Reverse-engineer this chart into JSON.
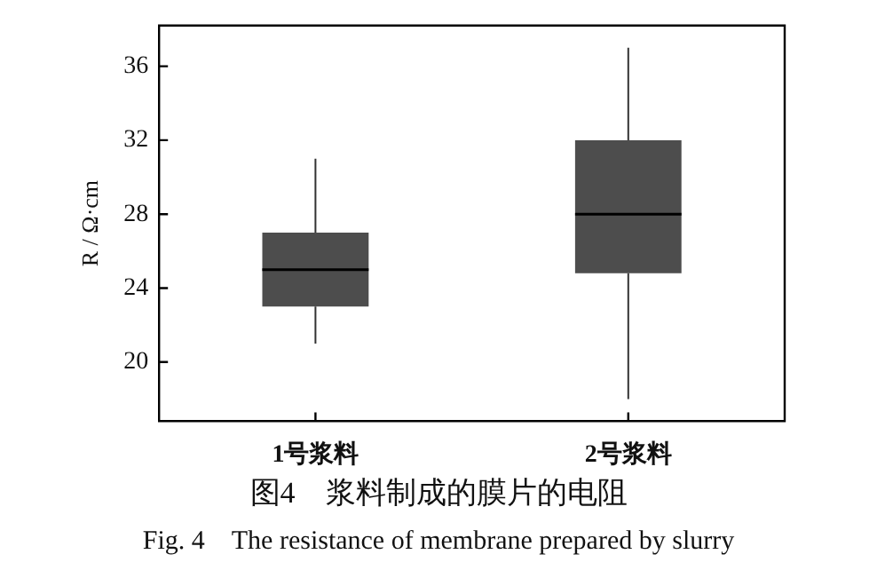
{
  "chart_data": {
    "type": "box",
    "title": "图4　浆料制成的膜片的电阻",
    "subtitle": "Fig. 4　The resistance of membrane prepared by slurry",
    "ylabel": "R / Ω·cm",
    "categories": [
      "1号浆料",
      "2号浆料"
    ],
    "color": "#4d4d4d",
    "boxes": [
      {
        "low": 21,
        "q1": 23,
        "median": 25,
        "q3": 27,
        "high": 31
      },
      {
        "low": 18,
        "q1": 24.8,
        "median": 28,
        "q3": 32,
        "high": 37
      }
    ],
    "ylim": [
      16.8,
      38.2
    ],
    "yticks": [
      20,
      24,
      28,
      32,
      36
    ]
  }
}
